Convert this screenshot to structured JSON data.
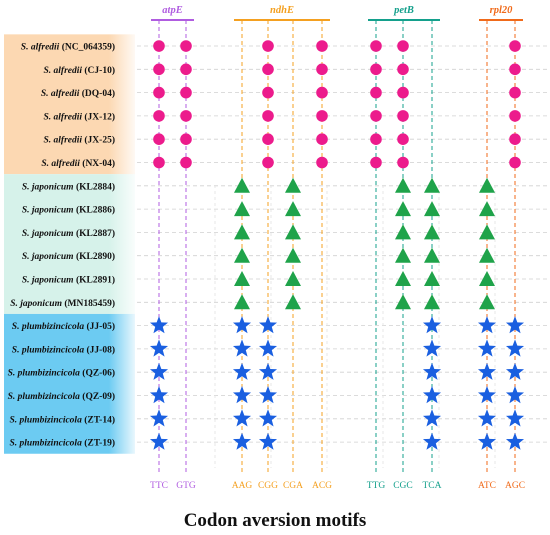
{
  "chart_data": {
    "type": "scatter",
    "xlabel": "Codon aversion motifs",
    "genes": [
      {
        "name": "atpE",
        "color": "#b05ce0",
        "codons": [
          "TTC",
          "GTG"
        ]
      },
      {
        "name": "ndhE",
        "color": "#f4a020",
        "codons": [
          "AAG",
          "CGG",
          "CGA",
          "ACG"
        ]
      },
      {
        "name": "petB",
        "color": "#14a08c",
        "codons": [
          "TTG",
          "CGC",
          "TCA"
        ]
      },
      {
        "name": "rpl20",
        "color": "#f06a1a",
        "codons": [
          "ATC",
          "AGC"
        ]
      }
    ],
    "codons": [
      "TTC",
      "GTG",
      "AAG",
      "CGG",
      "CGA",
      "ACG",
      "TTG",
      "CGC",
      "TCA",
      "ATC",
      "AGC"
    ],
    "groups": [
      {
        "species": "S. alfredii",
        "marker": "circle",
        "color": "#ec1b8c",
        "band_color": "#fcd8b2",
        "samples": [
          "NC_064359",
          "CJ-10",
          "DQ-04",
          "JX-12",
          "JX-25",
          "NX-04"
        ],
        "motifs": [
          "TTC",
          "GTG",
          "CGG",
          "ACG",
          "TTG",
          "CGC",
          "AGC"
        ]
      },
      {
        "species": "S. japonicum",
        "marker": "triangle",
        "color": "#1fa34a",
        "band_color": "#d6f2ea",
        "samples": [
          "KL2884",
          "KL2886",
          "KL2887",
          "KL2890",
          "KL2891",
          "MN185459"
        ],
        "motifs": [
          "AAG",
          "CGA",
          "CGC",
          "TCA",
          "ATC"
        ]
      },
      {
        "species": "S. plumbizincicola",
        "marker": "star",
        "color": "#1a5fe0",
        "band_color": "#6ccbf2",
        "samples": [
          "JJ-05",
          "JJ-08",
          "QZ-06",
          "QZ-09",
          "ZT-14",
          "ZT-19"
        ],
        "motifs": [
          "TTC",
          "AAG",
          "CGG",
          "TCA",
          "ATC",
          "AGC"
        ]
      }
    ]
  }
}
